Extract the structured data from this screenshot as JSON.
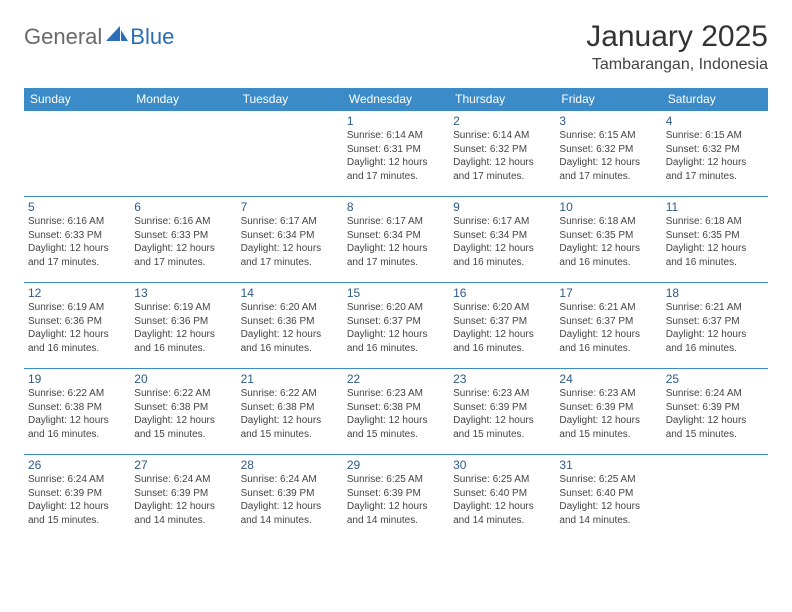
{
  "logo": {
    "text1": "General",
    "text2": "Blue"
  },
  "title": "January 2025",
  "location": "Tambarangan, Indonesia",
  "colors": {
    "header_bg": "#3b8bc9",
    "header_text": "#ffffff",
    "daynum": "#2f5a88",
    "border": "#3b8bc9",
    "logo_gray": "#6a6a6a",
    "logo_blue": "#2a6db8"
  },
  "day_names": [
    "Sunday",
    "Monday",
    "Tuesday",
    "Wednesday",
    "Thursday",
    "Friday",
    "Saturday"
  ],
  "weeks": [
    [
      {
        "n": "",
        "l1": "",
        "l2": "",
        "l3": "",
        "l4": ""
      },
      {
        "n": "",
        "l1": "",
        "l2": "",
        "l3": "",
        "l4": ""
      },
      {
        "n": "",
        "l1": "",
        "l2": "",
        "l3": "",
        "l4": ""
      },
      {
        "n": "1",
        "l1": "Sunrise: 6:14 AM",
        "l2": "Sunset: 6:31 PM",
        "l3": "Daylight: 12 hours",
        "l4": "and 17 minutes."
      },
      {
        "n": "2",
        "l1": "Sunrise: 6:14 AM",
        "l2": "Sunset: 6:32 PM",
        "l3": "Daylight: 12 hours",
        "l4": "and 17 minutes."
      },
      {
        "n": "3",
        "l1": "Sunrise: 6:15 AM",
        "l2": "Sunset: 6:32 PM",
        "l3": "Daylight: 12 hours",
        "l4": "and 17 minutes."
      },
      {
        "n": "4",
        "l1": "Sunrise: 6:15 AM",
        "l2": "Sunset: 6:32 PM",
        "l3": "Daylight: 12 hours",
        "l4": "and 17 minutes."
      }
    ],
    [
      {
        "n": "5",
        "l1": "Sunrise: 6:16 AM",
        "l2": "Sunset: 6:33 PM",
        "l3": "Daylight: 12 hours",
        "l4": "and 17 minutes."
      },
      {
        "n": "6",
        "l1": "Sunrise: 6:16 AM",
        "l2": "Sunset: 6:33 PM",
        "l3": "Daylight: 12 hours",
        "l4": "and 17 minutes."
      },
      {
        "n": "7",
        "l1": "Sunrise: 6:17 AM",
        "l2": "Sunset: 6:34 PM",
        "l3": "Daylight: 12 hours",
        "l4": "and 17 minutes."
      },
      {
        "n": "8",
        "l1": "Sunrise: 6:17 AM",
        "l2": "Sunset: 6:34 PM",
        "l3": "Daylight: 12 hours",
        "l4": "and 17 minutes."
      },
      {
        "n": "9",
        "l1": "Sunrise: 6:17 AM",
        "l2": "Sunset: 6:34 PM",
        "l3": "Daylight: 12 hours",
        "l4": "and 16 minutes."
      },
      {
        "n": "10",
        "l1": "Sunrise: 6:18 AM",
        "l2": "Sunset: 6:35 PM",
        "l3": "Daylight: 12 hours",
        "l4": "and 16 minutes."
      },
      {
        "n": "11",
        "l1": "Sunrise: 6:18 AM",
        "l2": "Sunset: 6:35 PM",
        "l3": "Daylight: 12 hours",
        "l4": "and 16 minutes."
      }
    ],
    [
      {
        "n": "12",
        "l1": "Sunrise: 6:19 AM",
        "l2": "Sunset: 6:36 PM",
        "l3": "Daylight: 12 hours",
        "l4": "and 16 minutes."
      },
      {
        "n": "13",
        "l1": "Sunrise: 6:19 AM",
        "l2": "Sunset: 6:36 PM",
        "l3": "Daylight: 12 hours",
        "l4": "and 16 minutes."
      },
      {
        "n": "14",
        "l1": "Sunrise: 6:20 AM",
        "l2": "Sunset: 6:36 PM",
        "l3": "Daylight: 12 hours",
        "l4": "and 16 minutes."
      },
      {
        "n": "15",
        "l1": "Sunrise: 6:20 AM",
        "l2": "Sunset: 6:37 PM",
        "l3": "Daylight: 12 hours",
        "l4": "and 16 minutes."
      },
      {
        "n": "16",
        "l1": "Sunrise: 6:20 AM",
        "l2": "Sunset: 6:37 PM",
        "l3": "Daylight: 12 hours",
        "l4": "and 16 minutes."
      },
      {
        "n": "17",
        "l1": "Sunrise: 6:21 AM",
        "l2": "Sunset: 6:37 PM",
        "l3": "Daylight: 12 hours",
        "l4": "and 16 minutes."
      },
      {
        "n": "18",
        "l1": "Sunrise: 6:21 AM",
        "l2": "Sunset: 6:37 PM",
        "l3": "Daylight: 12 hours",
        "l4": "and 16 minutes."
      }
    ],
    [
      {
        "n": "19",
        "l1": "Sunrise: 6:22 AM",
        "l2": "Sunset: 6:38 PM",
        "l3": "Daylight: 12 hours",
        "l4": "and 16 minutes."
      },
      {
        "n": "20",
        "l1": "Sunrise: 6:22 AM",
        "l2": "Sunset: 6:38 PM",
        "l3": "Daylight: 12 hours",
        "l4": "and 15 minutes."
      },
      {
        "n": "21",
        "l1": "Sunrise: 6:22 AM",
        "l2": "Sunset: 6:38 PM",
        "l3": "Daylight: 12 hours",
        "l4": "and 15 minutes."
      },
      {
        "n": "22",
        "l1": "Sunrise: 6:23 AM",
        "l2": "Sunset: 6:38 PM",
        "l3": "Daylight: 12 hours",
        "l4": "and 15 minutes."
      },
      {
        "n": "23",
        "l1": "Sunrise: 6:23 AM",
        "l2": "Sunset: 6:39 PM",
        "l3": "Daylight: 12 hours",
        "l4": "and 15 minutes."
      },
      {
        "n": "24",
        "l1": "Sunrise: 6:23 AM",
        "l2": "Sunset: 6:39 PM",
        "l3": "Daylight: 12 hours",
        "l4": "and 15 minutes."
      },
      {
        "n": "25",
        "l1": "Sunrise: 6:24 AM",
        "l2": "Sunset: 6:39 PM",
        "l3": "Daylight: 12 hours",
        "l4": "and 15 minutes."
      }
    ],
    [
      {
        "n": "26",
        "l1": "Sunrise: 6:24 AM",
        "l2": "Sunset: 6:39 PM",
        "l3": "Daylight: 12 hours",
        "l4": "and 15 minutes."
      },
      {
        "n": "27",
        "l1": "Sunrise: 6:24 AM",
        "l2": "Sunset: 6:39 PM",
        "l3": "Daylight: 12 hours",
        "l4": "and 14 minutes."
      },
      {
        "n": "28",
        "l1": "Sunrise: 6:24 AM",
        "l2": "Sunset: 6:39 PM",
        "l3": "Daylight: 12 hours",
        "l4": "and 14 minutes."
      },
      {
        "n": "29",
        "l1": "Sunrise: 6:25 AM",
        "l2": "Sunset: 6:39 PM",
        "l3": "Daylight: 12 hours",
        "l4": "and 14 minutes."
      },
      {
        "n": "30",
        "l1": "Sunrise: 6:25 AM",
        "l2": "Sunset: 6:40 PM",
        "l3": "Daylight: 12 hours",
        "l4": "and 14 minutes."
      },
      {
        "n": "31",
        "l1": "Sunrise: 6:25 AM",
        "l2": "Sunset: 6:40 PM",
        "l3": "Daylight: 12 hours",
        "l4": "and 14 minutes."
      },
      {
        "n": "",
        "l1": "",
        "l2": "",
        "l3": "",
        "l4": ""
      }
    ]
  ]
}
